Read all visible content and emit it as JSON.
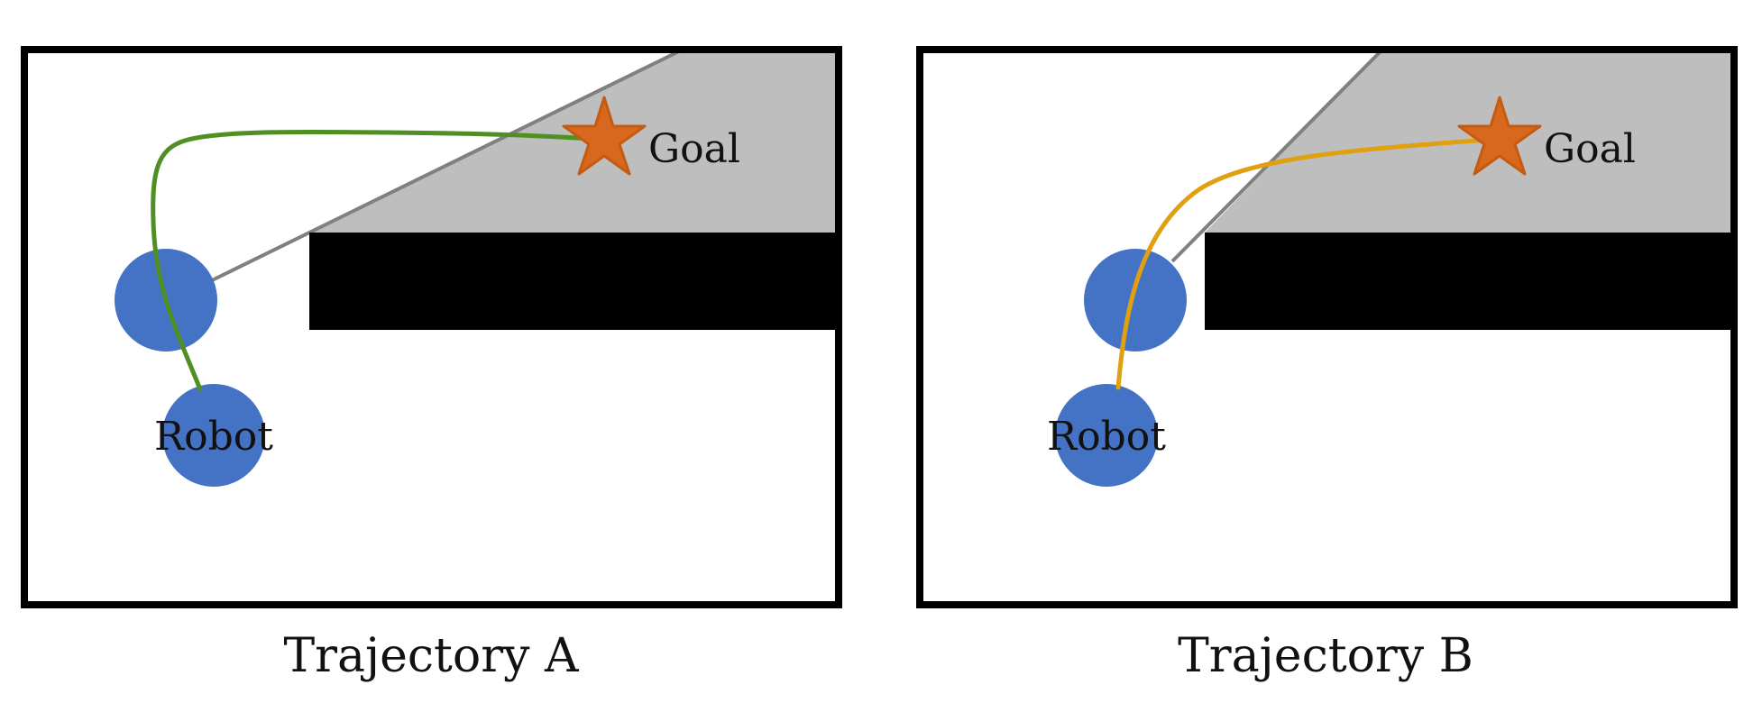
{
  "panels": [
    {
      "caption": "Trajectory A",
      "robot_label": "Robot",
      "goal_label": "Goal",
      "path_color": "#4f8f24"
    },
    {
      "caption": "Trajectory B",
      "robot_label": "Robot",
      "goal_label": "Goal",
      "path_color": "#e0a010"
    }
  ],
  "colors": {
    "robot": "#4472c4",
    "goal_fill": "#d9681f",
    "goal_stroke": "#c55a11",
    "visibility_region": "#bebebe",
    "sight_line": "#808080",
    "obstacle": "#000000",
    "frame": "#000000"
  }
}
